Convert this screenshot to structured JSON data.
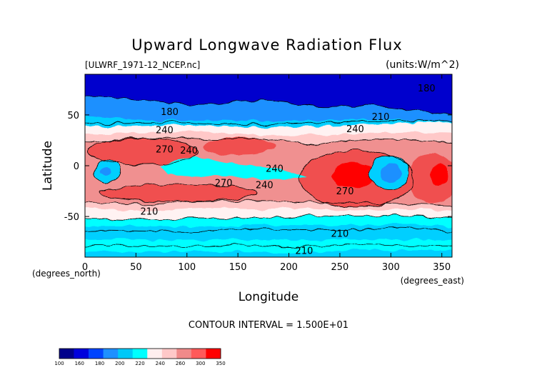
{
  "chart_data": {
    "type": "heatmap",
    "title": "Upward Longwave Radiation Flux",
    "file_label": "[ULWRF_1971-12_NCEP.nc]",
    "units_label": "(units:W/m^2)",
    "xlabel": "Longitude",
    "ylabel": "Latitude",
    "x_units_label": "(degrees_east)",
    "y_units_label": "(degrees_north)",
    "xlim": [
      0,
      360
    ],
    "ylim": [
      -90,
      90
    ],
    "x_ticks": [
      "0",
      "50",
      "100",
      "150",
      "200",
      "250",
      "300",
      "350"
    ],
    "x_tick_values": [
      0,
      50,
      100,
      150,
      200,
      250,
      300,
      350
    ],
    "y_ticks": [
      "50",
      "0",
      "-50"
    ],
    "y_tick_values": [
      50,
      0,
      -50
    ],
    "contour_interval_text": "CONTOUR INTERVAL = 1.500E+01",
    "contour_labels": [
      {
        "text": "180",
        "lon": 83,
        "lat": 50
      },
      {
        "text": "240",
        "lon": 78,
        "lat": 32
      },
      {
        "text": "270",
        "lon": 78,
        "lat": 13
      },
      {
        "text": "240",
        "lon": 102,
        "lat": 12
      },
      {
        "text": "240",
        "lon": 186,
        "lat": -6
      },
      {
        "text": "240",
        "lon": 176,
        "lat": -22
      },
      {
        "text": "270",
        "lon": 136,
        "lat": -20
      },
      {
        "text": "240",
        "lon": 265,
        "lat": 33
      },
      {
        "text": "210",
        "lon": 290,
        "lat": 45
      },
      {
        "text": "270",
        "lon": 255,
        "lat": -28
      },
      {
        "text": "210",
        "lon": 63,
        "lat": -48
      },
      {
        "text": "210",
        "lon": 250,
        "lat": -70
      },
      {
        "text": "210",
        "lon": 215,
        "lat": -87
      },
      {
        "text": "180",
        "lon": 335,
        "lat": 73
      }
    ],
    "colorbar": {
      "levels": [
        "100",
        "160",
        "180",
        "200",
        "220",
        "240",
        "260",
        "300",
        "350"
      ],
      "colors": [
        "#00008b",
        "#0000dd",
        "#0044ff",
        "#1e90ff",
        "#00c8f8",
        "#00ffff",
        "#ffeeee",
        "#ffc8c8",
        "#f08a8a",
        "#ff5a5a",
        "#ff0000"
      ]
    },
    "field_colors": {
      "c150": "#0000cd",
      "c180": "#1e90ff",
      "c195": "#00cfff",
      "c210": "#00ffff",
      "c225": "#fff2f2",
      "c240": "#ffc8c8",
      "c255": "#f09090",
      "c270": "#f05050",
      "c290": "#ff0000"
    }
  }
}
